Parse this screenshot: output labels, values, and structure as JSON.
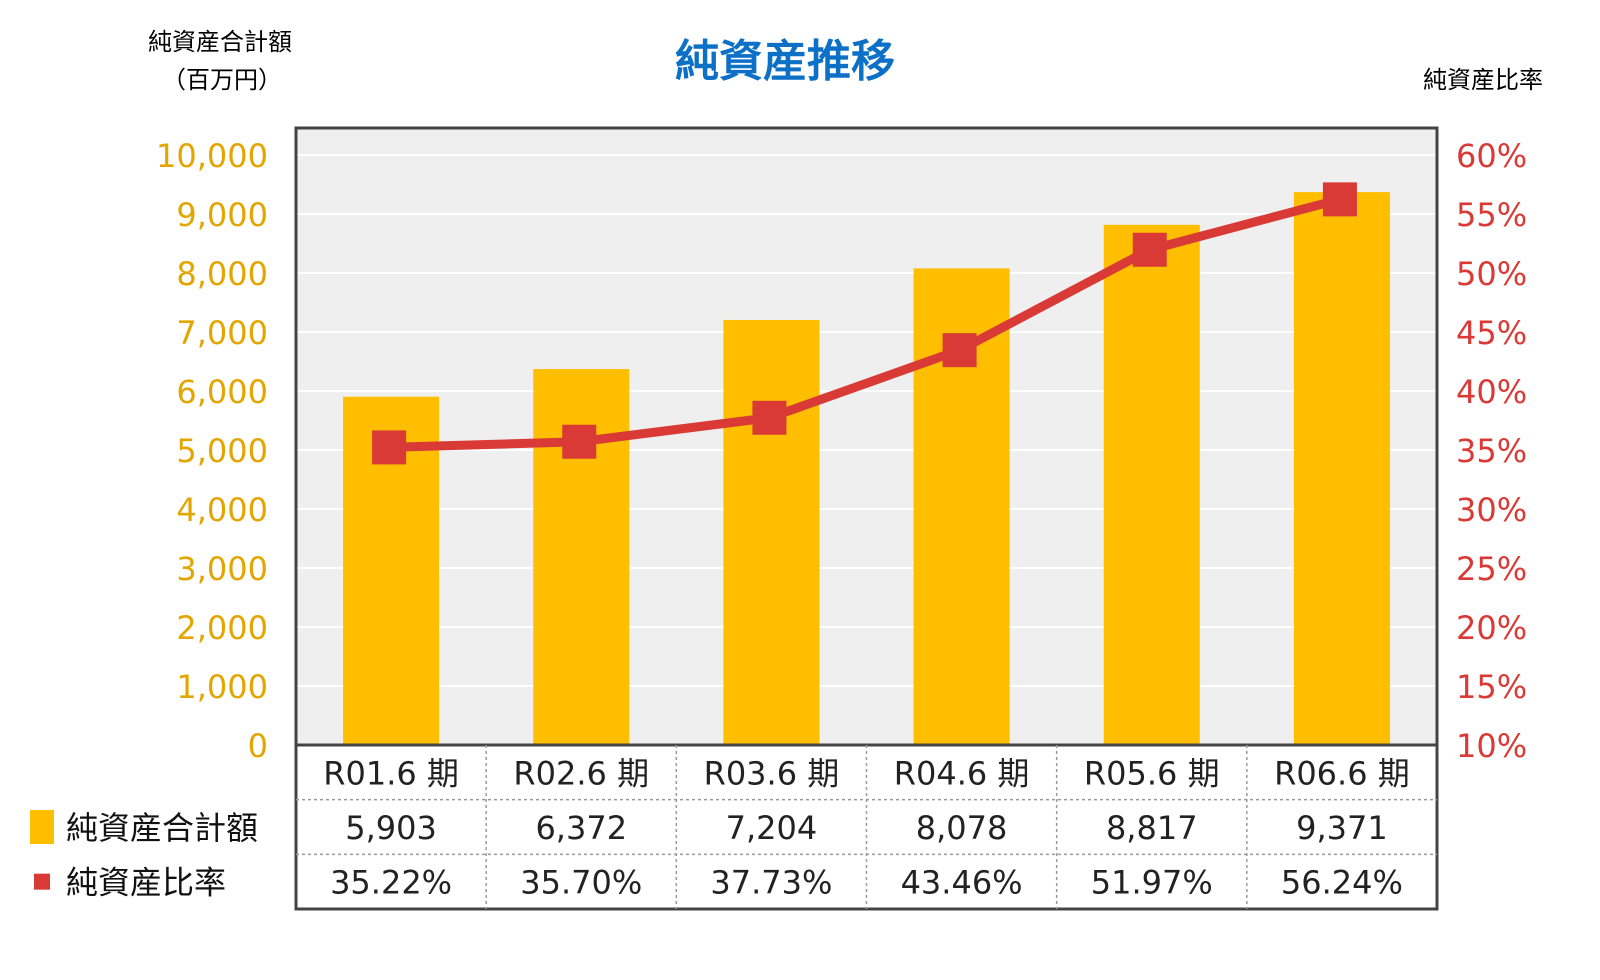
{
  "chart_data": {
    "type": "bar",
    "title": "純資産推移",
    "left_axis_label": [
      "純資産合計額",
      "（百万円）"
    ],
    "right_axis_label": "純資産比率",
    "categories": [
      "R01.6 期",
      "R02.6 期",
      "R03.6 期",
      "R04.6 期",
      "R05.6 期",
      "R06.6 期"
    ],
    "series": [
      {
        "name": "純資産合計額",
        "type": "bar",
        "axis": "left",
        "color": "#FFBE00",
        "values": [
          5903,
          6372,
          7204,
          8078,
          8817,
          9371
        ],
        "labels": [
          "5,903",
          "6,372",
          "7,204",
          "8,078",
          "8,817",
          "9,371"
        ]
      },
      {
        "name": "純資産比率",
        "type": "line",
        "axis": "right",
        "color": "#D93A36",
        "values": [
          35.22,
          35.7,
          37.73,
          43.46,
          51.97,
          56.24
        ],
        "labels": [
          "35.22%",
          "35.70%",
          "37.73%",
          "43.46%",
          "51.97%",
          "56.24%"
        ]
      }
    ],
    "left_axis": {
      "ylim": [
        0,
        10000
      ],
      "ticks": [
        "0",
        "1,000",
        "2,000",
        "3,000",
        "4,000",
        "5,000",
        "6,000",
        "7,000",
        "8,000",
        "9,000",
        "10,000"
      ],
      "color": "#E3A500"
    },
    "right_axis": {
      "ylim": [
        10,
        60
      ],
      "ticks": [
        "10%",
        "15%",
        "20%",
        "25%",
        "30%",
        "35%",
        "40%",
        "45%",
        "50%",
        "55%",
        "60%"
      ],
      "color": "#D93A36"
    },
    "grid": true,
    "legend": "data-table-left",
    "title_color": "#0B70C6",
    "plot_background": "#EFEFEF"
  }
}
